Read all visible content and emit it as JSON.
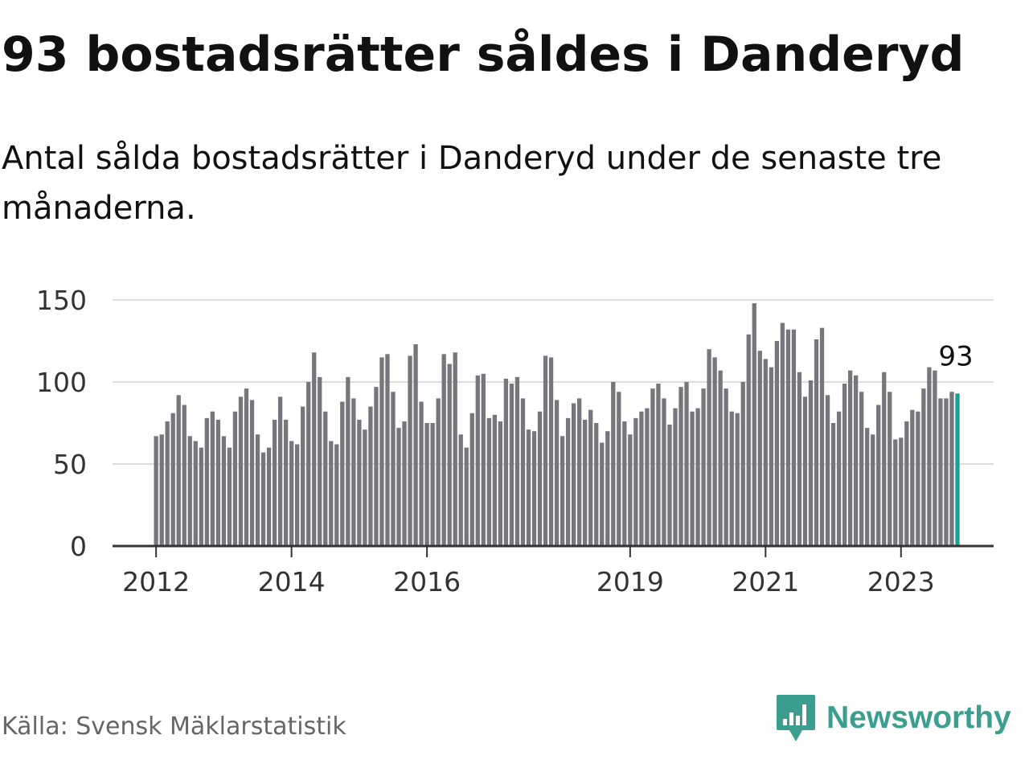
{
  "header": {
    "title": "93 bostadsrätter såldes i Danderyd",
    "subtitle": "Antal sålda bostadsrätter i Danderyd under de senaste tre månaderna."
  },
  "footer": {
    "source": "Källa: Svensk Mäklarstatistik",
    "brand": "Newsworthy"
  },
  "colors": {
    "bar": "#76767c",
    "highlight": "#1d9e95",
    "grid": "#dddddd",
    "axis": "#333333",
    "brand": "#3b9e8e"
  },
  "icons": {
    "logo": "newsworthy-bar-chart-logo-icon"
  },
  "chart_data": {
    "type": "bar",
    "title": "93 bostadsrätter såldes i Danderyd",
    "xlabel": "",
    "ylabel": "",
    "ylim": [
      0,
      150
    ],
    "yticks": [
      0,
      50,
      100,
      150
    ],
    "grid": true,
    "start": {
      "year": 2012,
      "month": 1
    },
    "xtick_labels": [
      "2012",
      "2014",
      "2016",
      "2019",
      "2021",
      "2023"
    ],
    "xtick_index": [
      0,
      24,
      48,
      84,
      108,
      132
    ],
    "highlight_index": 142,
    "highlight_label": "93",
    "values": [
      67,
      68,
      76,
      81,
      92,
      86,
      67,
      64,
      60,
      78,
      82,
      77,
      67,
      60,
      82,
      91,
      96,
      89,
      68,
      57,
      60,
      77,
      91,
      77,
      64,
      62,
      85,
      100,
      118,
      103,
      82,
      64,
      62,
      88,
      103,
      90,
      77,
      71,
      85,
      97,
      115,
      117,
      94,
      72,
      76,
      116,
      123,
      88,
      75,
      75,
      90,
      117,
      111,
      118,
      68,
      60,
      81,
      104,
      105,
      78,
      80,
      76,
      102,
      99,
      103,
      90,
      71,
      70,
      82,
      116,
      115,
      89,
      67,
      78,
      87,
      90,
      77,
      83,
      75,
      63,
      70,
      100,
      94,
      76,
      68,
      78,
      82,
      84,
      96,
      99,
      90,
      74,
      84,
      97,
      100,
      82,
      84,
      96,
      120,
      115,
      107,
      96,
      82,
      81,
      100,
      129,
      148,
      119,
      114,
      109,
      125,
      136,
      132,
      132,
      106,
      91,
      101,
      126,
      133,
      92,
      75,
      82,
      99,
      107,
      104,
      94,
      72,
      68,
      86,
      106,
      94,
      65,
      66,
      76,
      83,
      82,
      96,
      109,
      107,
      90,
      90,
      94,
      93
    ]
  }
}
